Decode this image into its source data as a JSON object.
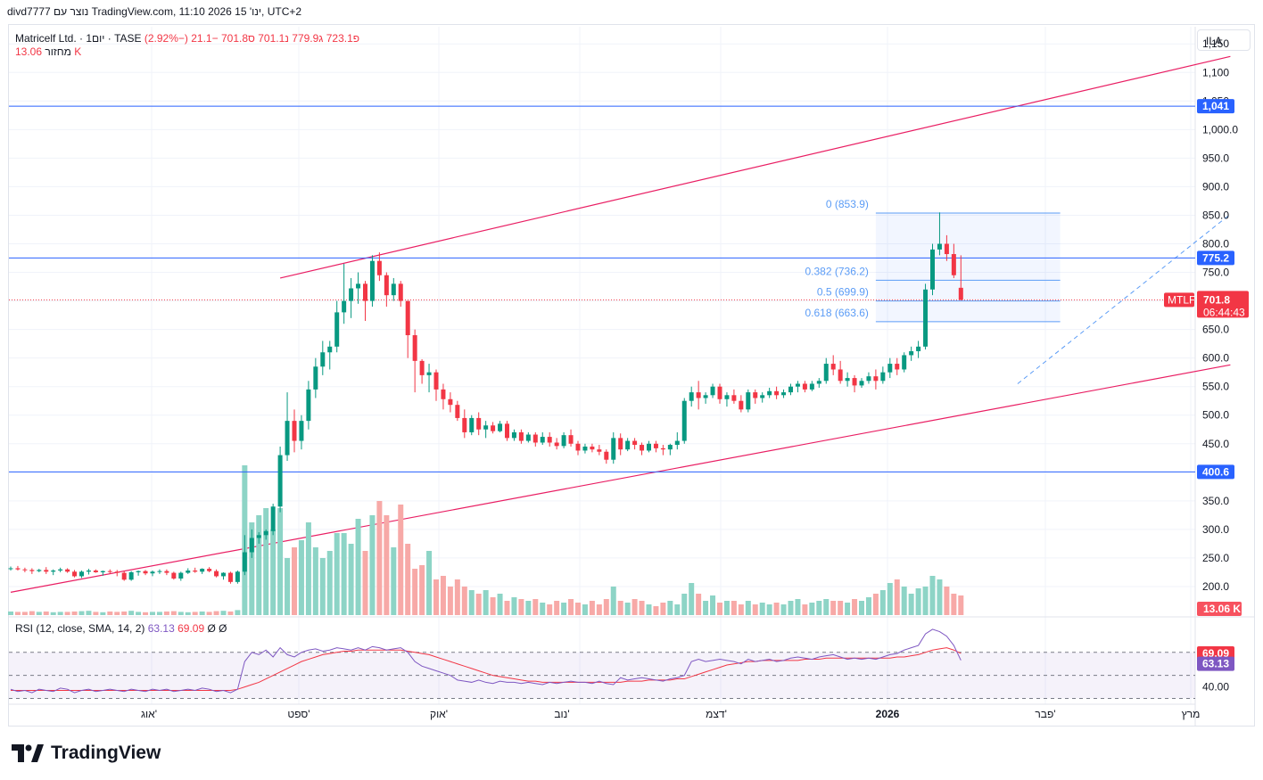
{
  "header": {
    "text": "divd7777 נוצר עם TradingView.com, 11:10 2026 ינו' 15, UTC+2"
  },
  "legend": {
    "symbol": "Matricelf Ltd. · 1יום · TASE",
    "open": "פ723.1",
    "high": "ג779.9",
    "low": "נ701.1",
    "close": "ס701.8",
    "change": "−21.1 (−2.92%)",
    "volume_label": "מחזור",
    "volume_value": "13.06 K"
  },
  "rsi_legend": {
    "label": "RSI (12, close, SMA, 14, 2)",
    "rsi": "63.13",
    "sma": "69.09",
    "extra": "Ø Ø"
  },
  "currency": "ILA",
  "colors": {
    "up": "#089981",
    "down": "#f23645",
    "hline": "#2962ff",
    "channel": "#e91e63",
    "fib": "#5b9cf6",
    "rsi": "#7e57c2"
  },
  "axis": {
    "price_ticks": [
      "1,150",
      "1,100",
      "1,050",
      "1,000.0",
      "950.0",
      "900.0",
      "850.0",
      "800.0",
      "750.0",
      "650.0",
      "600.0",
      "550.0",
      "500.0",
      "450.0",
      "350.0",
      "300.0",
      "250.0",
      "200.0"
    ],
    "rsi_ticks": [
      "40.00"
    ],
    "time_labels": [
      "אוג'",
      "ספט'",
      "אוק'",
      "נוב'",
      "דצמ'",
      "2026",
      "פבר'",
      "מרץ"
    ]
  },
  "labels": {
    "hline_1041": "1,041",
    "hline_775": "775.2",
    "hline_400": "400.6",
    "ticker": "MTLF",
    "last_price": "701.8",
    "countdown": "06:44:43",
    "vol_label": "13.06 K",
    "rsi_sma_label": "69.09",
    "rsi_val_label": "63.13",
    "fib0": "0 (853.9)",
    "fib382": "0.382 (736.2)",
    "fib5": "0.5 (699.9)",
    "fib618": "0.618 (663.6)"
  },
  "chart_data": {
    "type": "candlestick",
    "symbol": "Matricelf Ltd.",
    "interval": "1D",
    "exchange": "TASE",
    "currency": "ILA",
    "last": {
      "open": 723.1,
      "high": 779.9,
      "low": 701.1,
      "close": 701.8,
      "change": -21.1,
      "change_pct": -2.92
    },
    "horizontal_levels": [
      1041,
      775.2,
      400.6
    ],
    "fibonacci": [
      {
        "level": 0,
        "price": 853.9
      },
      {
        "level": 0.382,
        "price": 736.2
      },
      {
        "level": 0.5,
        "price": 699.9
      },
      {
        "level": 0.618,
        "price": 663.6
      }
    ],
    "channel": {
      "upper": [
        [
          38,
          740
        ],
        [
          172,
          1128
        ]
      ],
      "lower": [
        [
          0,
          190
        ],
        [
          172,
          588
        ]
      ]
    },
    "trend_projection": [
      [
        142,
        555
      ],
      [
        172,
        852
      ]
    ],
    "ohlc": [
      [
        232,
        235,
        228,
        232
      ],
      [
        232,
        236,
        228,
        230
      ],
      [
        230,
        233,
        225,
        229
      ],
      [
        229,
        232,
        222,
        227
      ],
      [
        227,
        231,
        225,
        229
      ],
      [
        229,
        234,
        222,
        226
      ],
      [
        226,
        230,
        220,
        228
      ],
      [
        228,
        233,
        225,
        230
      ],
      [
        230,
        232,
        224,
        226
      ],
      [
        226,
        229,
        216,
        218
      ],
      [
        218,
        228,
        215,
        226
      ],
      [
        226,
        231,
        221,
        228
      ],
      [
        228,
        230,
        224,
        225
      ],
      [
        225,
        228,
        219,
        227
      ],
      [
        227,
        230,
        222,
        226
      ],
      [
        226,
        229,
        218,
        224
      ],
      [
        224,
        228,
        210,
        212
      ],
      [
        212,
        227,
        210,
        225
      ],
      [
        225,
        228,
        219,
        227
      ],
      [
        227,
        229,
        220,
        223
      ],
      [
        223,
        228,
        218,
        226
      ],
      [
        226,
        230,
        222,
        227
      ],
      [
        227,
        230,
        220,
        224
      ],
      [
        224,
        226,
        212,
        214
      ],
      [
        214,
        226,
        210,
        224
      ],
      [
        224,
        232,
        222,
        228
      ],
      [
        228,
        233,
        224,
        226
      ],
      [
        226,
        232,
        222,
        231
      ],
      [
        231,
        234,
        225,
        227
      ],
      [
        227,
        230,
        216,
        218
      ],
      [
        218,
        225,
        212,
        224
      ],
      [
        224,
        226,
        205,
        208
      ],
      [
        208,
        228,
        205,
        226
      ],
      [
        226,
        290,
        220,
        260
      ],
      [
        260,
        300,
        250,
        285
      ],
      [
        285,
        295,
        275,
        290
      ],
      [
        290,
        300,
        282,
        297
      ],
      [
        297,
        345,
        290,
        340
      ],
      [
        340,
        445,
        330,
        430
      ],
      [
        430,
        540,
        420,
        490
      ],
      [
        490,
        510,
        435,
        455
      ],
      [
        455,
        500,
        440,
        490
      ],
      [
        490,
        560,
        475,
        545
      ],
      [
        545,
        600,
        530,
        585
      ],
      [
        585,
        630,
        570,
        610
      ],
      [
        610,
        630,
        580,
        620
      ],
      [
        620,
        700,
        610,
        680
      ],
      [
        680,
        765,
        660,
        700
      ],
      [
        700,
        740,
        670,
        722
      ],
      [
        722,
        750,
        695,
        730
      ],
      [
        730,
        735,
        665,
        700
      ],
      [
        700,
        780,
        690,
        770
      ],
      [
        770,
        785,
        735,
        745
      ],
      [
        745,
        750,
        690,
        710
      ],
      [
        710,
        740,
        700,
        730
      ],
      [
        730,
        735,
        690,
        700
      ],
      [
        700,
        700,
        600,
        640
      ],
      [
        640,
        650,
        540,
        595
      ],
      [
        595,
        598,
        555,
        570
      ],
      [
        570,
        590,
        540,
        575
      ],
      [
        575,
        580,
        525,
        545
      ],
      [
        545,
        555,
        510,
        528
      ],
      [
        528,
        540,
        505,
        518
      ],
      [
        518,
        525,
        490,
        495
      ],
      [
        495,
        510,
        460,
        470
      ],
      [
        470,
        500,
        465,
        495
      ],
      [
        495,
        505,
        465,
        475
      ],
      [
        475,
        490,
        460,
        482
      ],
      [
        482,
        488,
        468,
        472
      ],
      [
        472,
        490,
        470,
        485
      ],
      [
        485,
        490,
        455,
        460
      ],
      [
        460,
        475,
        455,
        470
      ],
      [
        470,
        475,
        450,
        455
      ],
      [
        455,
        470,
        452,
        466
      ],
      [
        466,
        470,
        445,
        452
      ],
      [
        452,
        470,
        448,
        462
      ],
      [
        462,
        470,
        445,
        452
      ],
      [
        452,
        460,
        440,
        446
      ],
      [
        446,
        470,
        442,
        465
      ],
      [
        465,
        475,
        445,
        450
      ],
      [
        450,
        455,
        430,
        438
      ],
      [
        438,
        450,
        433,
        445
      ],
      [
        445,
        450,
        435,
        440
      ],
      [
        440,
        448,
        430,
        436
      ],
      [
        436,
        440,
        415,
        422
      ],
      [
        422,
        470,
        415,
        460
      ],
      [
        460,
        468,
        430,
        440
      ],
      [
        440,
        460,
        437,
        455
      ],
      [
        455,
        460,
        440,
        448
      ],
      [
        448,
        452,
        430,
        438
      ],
      [
        438,
        455,
        435,
        450
      ],
      [
        450,
        455,
        435,
        442
      ],
      [
        442,
        448,
        430,
        440
      ],
      [
        440,
        450,
        430,
        448
      ],
      [
        448,
        470,
        440,
        455
      ],
      [
        455,
        530,
        450,
        525
      ],
      [
        525,
        550,
        515,
        540
      ],
      [
        540,
        560,
        510,
        530
      ],
      [
        530,
        540,
        520,
        535
      ],
      [
        535,
        555,
        530,
        550
      ],
      [
        550,
        555,
        520,
        528
      ],
      [
        528,
        540,
        515,
        535
      ],
      [
        535,
        545,
        520,
        525
      ],
      [
        525,
        535,
        505,
        510
      ],
      [
        510,
        545,
        505,
        540
      ],
      [
        540,
        545,
        520,
        530
      ],
      [
        530,
        540,
        522,
        535
      ],
      [
        535,
        548,
        530,
        542
      ],
      [
        542,
        550,
        528,
        535
      ],
      [
        535,
        545,
        530,
        540
      ],
      [
        540,
        555,
        535,
        550
      ],
      [
        550,
        560,
        540,
        555
      ],
      [
        555,
        560,
        540,
        545
      ],
      [
        545,
        560,
        542,
        555
      ],
      [
        555,
        565,
        548,
        560
      ],
      [
        560,
        600,
        555,
        590
      ],
      [
        590,
        605,
        570,
        580
      ],
      [
        580,
        595,
        555,
        560
      ],
      [
        560,
        575,
        550,
        565
      ],
      [
        565,
        570,
        540,
        552
      ],
      [
        552,
        565,
        548,
        560
      ],
      [
        560,
        575,
        555,
        568
      ],
      [
        568,
        580,
        545,
        560
      ],
      [
        560,
        585,
        555,
        575
      ],
      [
        575,
        600,
        565,
        590
      ],
      [
        590,
        600,
        570,
        580
      ],
      [
        580,
        610,
        575,
        605
      ],
      [
        605,
        620,
        595,
        612
      ],
      [
        612,
        630,
        600,
        620
      ],
      [
        620,
        730,
        615,
        720
      ],
      [
        720,
        800,
        710,
        790
      ],
      [
        790,
        855,
        780,
        800
      ],
      [
        800,
        815,
        770,
        782
      ],
      [
        782,
        800,
        740,
        745
      ],
      [
        723,
        779.9,
        701.1,
        701.8
      ]
    ],
    "volume": [
      10,
      9,
      9,
      11,
      9,
      10,
      8,
      9,
      9,
      10,
      11,
      12,
      9,
      8,
      10,
      9,
      10,
      12,
      9,
      8,
      9,
      9,
      10,
      11,
      9,
      8,
      9,
      10,
      9,
      11,
      12,
      10,
      14,
      420,
      260,
      280,
      300,
      240,
      300,
      160,
      190,
      210,
      260,
      190,
      160,
      180,
      230,
      230,
      200,
      270,
      180,
      280,
      320,
      280,
      190,
      310,
      200,
      130,
      140,
      180,
      100,
      110,
      80,
      100,
      80,
      70,
      60,
      70,
      50,
      60,
      40,
      50,
      45,
      40,
      45,
      35,
      30,
      40,
      35,
      45,
      35,
      30,
      40,
      30,
      45,
      80,
      40,
      35,
      45,
      40,
      30,
      25,
      35,
      40,
      30,
      60,
      90,
      60,
      40,
      55,
      35,
      40,
      40,
      30,
      40,
      30,
      35,
      30,
      35,
      30,
      40,
      45,
      30,
      35,
      40,
      45,
      40,
      40,
      35,
      45,
      40,
      50,
      60,
      70,
      90,
      100,
      80,
      60,
      75,
      80,
      110,
      100,
      80,
      60,
      55
    ],
    "rsi": [
      38,
      36,
      37,
      35,
      38,
      37,
      36,
      39,
      38,
      35,
      37,
      38,
      36,
      37,
      38,
      37,
      36,
      38,
      37,
      36,
      38,
      37,
      38,
      36,
      37,
      38,
      37,
      39,
      38,
      36,
      37,
      35,
      38,
      62,
      70,
      68,
      72,
      66,
      74,
      68,
      66,
      70,
      72,
      73,
      71,
      72,
      74,
      73,
      72,
      74,
      72,
      75,
      74,
      72,
      73,
      74,
      70,
      62,
      58,
      56,
      54,
      52,
      50,
      46,
      45,
      44,
      46,
      44,
      43,
      45,
      44,
      44,
      43,
      44,
      43,
      42,
      44,
      43,
      44,
      45,
      44,
      44,
      43,
      45,
      43,
      42,
      48,
      46,
      47,
      48,
      47,
      46,
      45,
      47,
      48,
      50,
      62,
      64,
      62,
      63,
      64,
      63,
      62,
      60,
      64,
      62,
      63,
      64,
      62,
      63,
      65,
      66,
      65,
      64,
      66,
      67,
      68,
      66,
      64,
      65,
      64,
      65,
      64,
      66,
      68,
      69,
      72,
      74,
      76,
      86,
      90,
      88,
      84,
      76,
      63.13
    ],
    "rsi_sma": [
      37,
      37,
      37,
      37,
      37,
      37,
      37,
      37,
      37,
      37,
      37,
      37,
      37,
      37,
      37,
      37,
      37,
      37,
      37,
      37,
      37,
      37,
      37,
      37,
      37,
      37,
      37,
      37,
      37,
      37,
      37,
      37,
      38,
      40,
      42,
      44,
      47,
      50,
      53,
      56,
      59,
      62,
      64,
      66,
      68,
      69,
      70,
      71,
      71,
      72,
      72,
      72,
      72,
      72,
      72,
      72,
      71,
      70,
      69,
      68,
      66,
      64,
      62,
      60,
      58,
      56,
      54,
      52,
      50,
      49,
      48,
      47,
      46,
      45,
      45,
      44,
      44,
      44,
      44,
      44,
      44,
      44,
      44,
      44,
      44,
      44,
      44,
      45,
      45,
      45,
      46,
      46,
      46,
      46,
      47,
      47,
      49,
      51,
      53,
      55,
      57,
      59,
      60,
      61,
      62,
      62,
      63,
      63,
      63,
      63,
      63,
      63,
      64,
      64,
      64,
      65,
      65,
      65,
      65,
      65,
      65,
      65,
      65,
      65,
      65,
      66,
      66,
      67,
      68,
      70,
      72,
      73,
      74,
      72,
      69.09
    ],
    "rsi_levels": {
      "upper": 70,
      "middle": 50,
      "lower": 30
    },
    "price_range": [
      150,
      1180
    ],
    "rsi_range": [
      25,
      100
    ]
  }
}
